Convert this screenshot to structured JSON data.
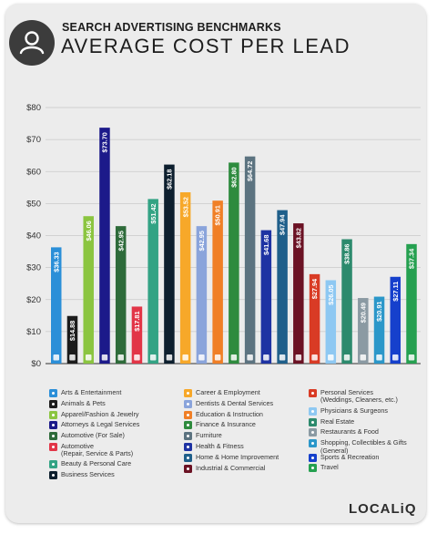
{
  "header": {
    "subtitle": "SEARCH ADVERTISING BENCHMARKS",
    "title": "AVERAGE COST PER LEAD"
  },
  "brand": {
    "logo": "LOCALiQ"
  },
  "icons": {
    "avatar": "user-circle-icon"
  },
  "chart_data": {
    "type": "bar",
    "yaxis_ticks": [
      "$0",
      "$10",
      "$20",
      "$30",
      "$40",
      "$50",
      "$60",
      "$70",
      "$80"
    ],
    "ylim": [
      0,
      80
    ],
    "grid": true,
    "legend_position": "bottom",
    "categories": [
      "Arts & Entertainment",
      "Animals & Pets",
      "Apparel/Fashion & Jewelry",
      "Attorneys & Legal Services",
      "Automotive (For Sale)",
      "Automotive (Repair, Service & Parts)",
      "Beauty & Personal Care",
      "Business Services",
      "Career & Employment",
      "Dentists & Dental Services",
      "Education & Instruction",
      "Finance & Insurance",
      "Furniture",
      "Health & Fitness",
      "Home & Home Improvement",
      "Industrial & Commercial",
      "Personal Services (Weddings, Cleaners, etc.)",
      "Physicians & Surgeons",
      "Real Estate",
      "Restaurants & Food",
      "Shopping, Collectibles & Gifts (General)",
      "Sports & Recreation",
      "Travel"
    ],
    "values": [
      36.33,
      14.88,
      46.06,
      73.7,
      42.95,
      17.81,
      51.42,
      62.18,
      53.52,
      42.95,
      50.91,
      62.8,
      64.72,
      41.68,
      47.94,
      43.82,
      27.94,
      26.05,
      38.86,
      20.49,
      20.91,
      27.11,
      37.34
    ],
    "value_labels": [
      "$36.33",
      "$14.88",
      "$46.06",
      "$73.70",
      "$42.95",
      "$17.81",
      "$51.42",
      "$62.18",
      "$53.52",
      "$42.95",
      "$50.91",
      "$62.80",
      "$64.72",
      "$41.68",
      "$47.94",
      "$43.82",
      "$27.94",
      "$26.05",
      "$38.86",
      "$20.49",
      "$20.91",
      "$27.11",
      "$37.34"
    ],
    "colors": [
      "#2b8fd8",
      "#1c1c1c",
      "#8bc540",
      "#1c1a8a",
      "#2e6b3a",
      "#e23547",
      "#33a384",
      "#0d1f2e",
      "#f7a829",
      "#8aa4db",
      "#f07f26",
      "#2e8b3e",
      "#5c7380",
      "#1e33a3",
      "#1f5f8a",
      "#6b1224",
      "#d93b25",
      "#8ec8f2",
      "#2c8a6d",
      "#8b9aa3",
      "#2b97c9",
      "#1640cc",
      "#25a050"
    ],
    "legend_icons": [
      "palette-icon",
      "paw-icon",
      "shirt-icon",
      "gavel-icon",
      "car-icon",
      "wrench-icon",
      "brush-icon",
      "briefcase-icon",
      "id-card-icon",
      "tooth-icon",
      "graduation-cap-icon",
      "money-icon",
      "sofa-icon",
      "heart-pulse-icon",
      "house-icon",
      "factory-icon",
      "scissors-icon",
      "medical-cross-icon",
      "building-icon",
      "fork-knife-icon",
      "gift-icon",
      "ball-icon",
      "plane-icon"
    ],
    "legend_columns": [
      [
        0,
        1,
        2,
        3,
        4,
        5,
        6,
        7
      ],
      [
        8,
        9,
        10,
        11,
        12,
        13,
        14,
        15
      ],
      [
        16,
        17,
        18,
        19,
        20,
        21,
        22
      ]
    ]
  }
}
